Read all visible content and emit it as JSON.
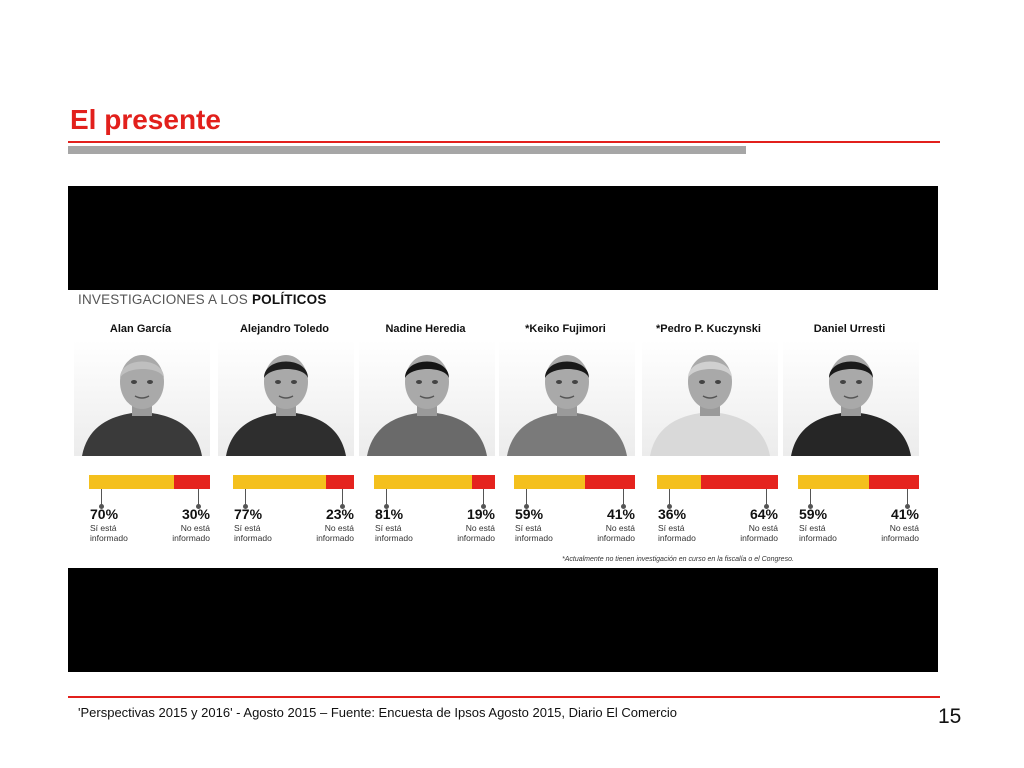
{
  "slide": {
    "title": "El presente",
    "footer": "'Perspectivas 2015 y 2016' - Agosto 2015 – Fuente: Encuesta de Ipsos Agosto 2015, Diario El Comercio",
    "page_number": "15"
  },
  "colors": {
    "accent": "#e2201c",
    "bar_yes": "#f4c01d",
    "bar_no": "#e5231e",
    "rule_gray": "#a6a6a6"
  },
  "chart_data": {
    "type": "bar",
    "orientation": "horizontal-stacked",
    "title_prefix": "INVESTIGACIONES A LOS ",
    "title_emphasis": "POLÍTICOS",
    "categories": [
      "Alan García",
      "Alejandro Toledo",
      "Nadine Heredia",
      "*Keiko Fujimori",
      "*Pedro P. Kuczynski",
      "Daniel Urresti"
    ],
    "series": [
      {
        "name": "Sí está informado",
        "color": "#f4c01d",
        "values": [
          70,
          77,
          81,
          59,
          36,
          59
        ]
      },
      {
        "name": "No está informado",
        "color": "#e5231e",
        "values": [
          30,
          23,
          19,
          41,
          64,
          41
        ]
      }
    ],
    "value_labels_yes": [
      "70%",
      "77%",
      "81%",
      "59%",
      "36%",
      "59%"
    ],
    "value_labels_no": [
      "30%",
      "23%",
      "19%",
      "41%",
      "64%",
      "41%"
    ],
    "label_yes": "Sí está informado",
    "label_no": "No está informado",
    "unit": "%",
    "footnote": "*Actualmente no tienen investigación en curso en la fiscalía o el Congreso."
  }
}
